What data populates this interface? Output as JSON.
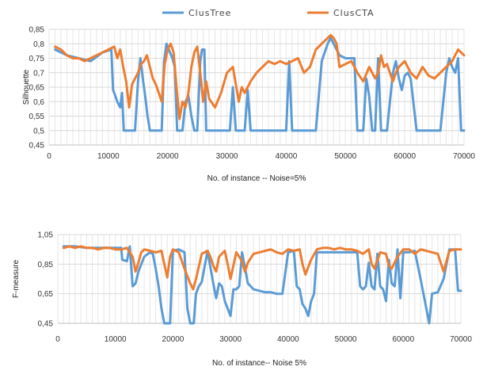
{
  "legend": {
    "position": "top-center",
    "entries": [
      {
        "name": "ClusTree",
        "color": "#5B9BD5"
      },
      {
        "name": "ClusCTA",
        "color": "#ED7D31"
      }
    ]
  },
  "chart_data": [
    {
      "type": "line",
      "title": "",
      "xlabel": "No. of instance -- Noise=5%",
      "ylabel": "Silhouette",
      "xlim": [
        0,
        70000
      ],
      "ylim": [
        0.45,
        0.85
      ],
      "xticks": [
        0,
        10000,
        20000,
        30000,
        40000,
        50000,
        60000,
        70000
      ],
      "yticks": [
        0.45,
        0.5,
        0.55,
        0.6,
        0.65,
        0.7,
        0.75,
        0.8,
        0.85
      ],
      "ytick_labels": [
        "0,45",
        "0,5",
        "0,55",
        "0,6",
        "0,65",
        "0,7",
        "0,75",
        "0,8",
        "0,85"
      ],
      "grid": true,
      "series": [
        {
          "name": "ClusTree",
          "color": "#5B9BD5",
          "x": [
            1000,
            3000,
            5000,
            7000,
            9000,
            10500,
            10800,
            11000,
            11500,
            12000,
            12300,
            12600,
            12900,
            13000,
            14500,
            15000,
            15400,
            15800,
            16200,
            16600,
            17000,
            18500,
            19000,
            19400,
            19800,
            20200,
            20800,
            21200,
            21600,
            22000,
            22500,
            23000,
            23500,
            24000,
            24500,
            25000,
            25500,
            25800,
            26200,
            26500,
            28000,
            30500,
            31000,
            31500,
            32000,
            33000,
            33500,
            34000,
            36000,
            39000,
            40000,
            40500,
            41000,
            42000,
            45000,
            46000,
            47000,
            47500,
            48000,
            49000,
            50000,
            51500,
            52000,
            52500,
            53000,
            53500,
            54000,
            54500,
            55000,
            55500,
            56000,
            56500,
            57000,
            57500,
            58000,
            58500,
            59000,
            59500,
            60000,
            60500,
            61000,
            62000,
            62500,
            65500,
            66000,
            66500,
            67000,
            67500,
            68000,
            68500,
            69000,
            69500,
            70000
          ],
          "values": [
            0.78,
            0.76,
            0.75,
            0.74,
            0.77,
            0.78,
            0.64,
            0.63,
            0.6,
            0.58,
            0.63,
            0.5,
            0.5,
            0.5,
            0.5,
            0.67,
            0.75,
            0.68,
            0.62,
            0.55,
            0.5,
            0.5,
            0.5,
            0.74,
            0.8,
            0.78,
            0.75,
            0.72,
            0.5,
            0.5,
            0.5,
            0.6,
            0.62,
            0.55,
            0.5,
            0.5,
            0.74,
            0.78,
            0.78,
            0.5,
            0.5,
            0.5,
            0.65,
            0.5,
            0.5,
            0.5,
            0.64,
            0.5,
            0.5,
            0.5,
            0.5,
            0.74,
            0.5,
            0.5,
            0.5,
            0.74,
            0.8,
            0.82,
            0.8,
            0.76,
            0.75,
            0.75,
            0.5,
            0.5,
            0.5,
            0.68,
            0.62,
            0.5,
            0.5,
            0.75,
            0.5,
            0.5,
            0.5,
            0.6,
            0.7,
            0.74,
            0.68,
            0.64,
            0.69,
            0.7,
            0.68,
            0.5,
            0.5,
            0.5,
            0.5,
            0.6,
            0.7,
            0.75,
            0.72,
            0.7,
            0.75,
            0.5,
            0.5
          ]
        },
        {
          "name": "ClusCTA",
          "color": "#ED7D31",
          "x": [
            1000,
            2000,
            3000,
            4000,
            5000,
            6000,
            7000,
            8000,
            9000,
            10000,
            11000,
            11500,
            12000,
            12500,
            13000,
            13500,
            14000,
            15000,
            15500,
            16000,
            16500,
            17000,
            17500,
            18000,
            18500,
            19000,
            19500,
            20000,
            20500,
            21000,
            21500,
            22000,
            22500,
            23000,
            23500,
            24000,
            24500,
            25000,
            25500,
            26000,
            26500,
            27000,
            28000,
            29000,
            30000,
            31000,
            32000,
            32500,
            33000,
            34000,
            35000,
            36000,
            37000,
            38000,
            39000,
            40000,
            41000,
            42000,
            43000,
            44000,
            45000,
            46000,
            47000,
            47500,
            48000,
            48500,
            49000,
            50000,
            51000,
            52000,
            53000,
            54000,
            54500,
            55000,
            55500,
            56000,
            56500,
            57000,
            57500,
            58000,
            58500,
            59000,
            60000,
            61000,
            62000,
            63000,
            64000,
            65000,
            66000,
            67000,
            68000,
            69000,
            70000
          ],
          "values": [
            0.79,
            0.78,
            0.76,
            0.75,
            0.75,
            0.74,
            0.75,
            0.76,
            0.77,
            0.78,
            0.79,
            0.75,
            0.78,
            0.72,
            0.67,
            0.58,
            0.66,
            0.7,
            0.73,
            0.74,
            0.76,
            0.72,
            0.68,
            0.66,
            0.63,
            0.6,
            0.73,
            0.78,
            0.8,
            0.77,
            0.65,
            0.54,
            0.6,
            0.58,
            0.63,
            0.72,
            0.77,
            0.79,
            0.7,
            0.6,
            0.67,
            0.61,
            0.58,
            0.63,
            0.7,
            0.72,
            0.6,
            0.65,
            0.63,
            0.67,
            0.7,
            0.72,
            0.74,
            0.73,
            0.74,
            0.73,
            0.74,
            0.75,
            0.7,
            0.72,
            0.78,
            0.8,
            0.82,
            0.83,
            0.82,
            0.8,
            0.72,
            0.73,
            0.74,
            0.7,
            0.67,
            0.72,
            0.7,
            0.68,
            0.7,
            0.76,
            0.72,
            0.73,
            0.7,
            0.67,
            0.7,
            0.72,
            0.74,
            0.7,
            0.68,
            0.72,
            0.69,
            0.68,
            0.7,
            0.72,
            0.74,
            0.78,
            0.76
          ]
        }
      ]
    },
    {
      "type": "line",
      "title": "",
      "xlabel": "No. of instance-- Noise 5%",
      "ylabel": "F-measure",
      "xlim": [
        0,
        70000
      ],
      "ylim": [
        0.45,
        1.05
      ],
      "xticks": [
        0,
        10000,
        20000,
        30000,
        40000,
        50000,
        60000,
        70000
      ],
      "yticks": [
        0.45,
        0.65,
        0.85,
        1.05
      ],
      "ytick_labels": [
        "0,45",
        "0,65",
        "0,85",
        "1,05"
      ],
      "grid": true,
      "series": [
        {
          "name": "ClusTree",
          "color": "#5B9BD5",
          "x": [
            1000,
            3000,
            5000,
            7000,
            9000,
            11000,
            11200,
            12000,
            12500,
            13000,
            13500,
            14000,
            15000,
            16000,
            16500,
            17000,
            17500,
            18000,
            18500,
            19000,
            19500,
            20000,
            21000,
            22000,
            22500,
            23000,
            23300,
            23600,
            24000,
            24500,
            25000,
            26000,
            27000,
            27500,
            28000,
            28500,
            29000,
            29500,
            30000,
            30500,
            31000,
            31500,
            32000,
            33000,
            33500,
            34000,
            35000,
            36000,
            37000,
            38000,
            39000,
            40000,
            41000,
            41500,
            42000,
            42500,
            43000,
            43500,
            44000,
            44500,
            45000,
            46000,
            47000,
            48000,
            49000,
            50000,
            51000,
            52000,
            52500,
            53000,
            53500,
            54000,
            54500,
            55000,
            55500,
            56000,
            56500,
            57000,
            57500,
            58000,
            58500,
            59000,
            59500,
            60000,
            61000,
            62000,
            63000,
            64000,
            64500,
            65000,
            66000,
            67000,
            67500,
            68000,
            69000,
            69500,
            70000
          ],
          "values": [
            0.97,
            0.97,
            0.96,
            0.96,
            0.96,
            0.96,
            0.88,
            0.87,
            0.97,
            0.7,
            0.72,
            0.8,
            0.9,
            0.93,
            0.92,
            0.82,
            0.7,
            0.55,
            0.45,
            0.45,
            0.45,
            0.94,
            0.95,
            0.93,
            0.55,
            0.45,
            0.45,
            0.45,
            0.65,
            0.7,
            0.73,
            0.94,
            0.72,
            0.62,
            0.72,
            0.7,
            0.6,
            0.55,
            0.5,
            0.68,
            0.68,
            0.7,
            0.93,
            0.72,
            0.7,
            0.68,
            0.67,
            0.66,
            0.66,
            0.65,
            0.65,
            0.93,
            0.94,
            0.7,
            0.68,
            0.58,
            0.55,
            0.5,
            0.6,
            0.65,
            0.93,
            0.93,
            0.93,
            0.93,
            0.93,
            0.93,
            0.93,
            0.93,
            0.7,
            0.68,
            0.7,
            0.86,
            0.7,
            0.68,
            0.92,
            0.7,
            0.68,
            0.6,
            0.88,
            0.72,
            0.7,
            0.95,
            0.62,
            0.93,
            0.93,
            0.94,
            0.75,
            0.55,
            0.45,
            0.65,
            0.66,
            0.75,
            0.85,
            0.95,
            0.95,
            0.67,
            0.67
          ]
        },
        {
          "name": "ClusCTA",
          "color": "#ED7D31",
          "x": [
            1000,
            2000,
            3000,
            4000,
            5000,
            6000,
            7000,
            8000,
            9000,
            10000,
            11000,
            12000,
            13000,
            13500,
            14000,
            14500,
            15000,
            16000,
            17000,
            18000,
            18500,
            19000,
            19500,
            20000,
            20500,
            21000,
            22000,
            23000,
            23500,
            24000,
            25000,
            26000,
            26500,
            27000,
            27500,
            28000,
            29000,
            29500,
            30000,
            31000,
            32000,
            32500,
            33000,
            34000,
            35000,
            36000,
            37000,
            38000,
            39000,
            40000,
            41000,
            42000,
            42500,
            43000,
            44000,
            45000,
            46000,
            47000,
            48000,
            49000,
            50000,
            51000,
            52000,
            53000,
            54000,
            54500,
            55000,
            56000,
            57000,
            57500,
            58000,
            59000,
            60000,
            61000,
            62000,
            63000,
            64000,
            65000,
            66000,
            67000,
            68000,
            69000,
            70000
          ],
          "values": [
            0.96,
            0.97,
            0.96,
            0.97,
            0.96,
            0.96,
            0.95,
            0.96,
            0.96,
            0.95,
            0.95,
            0.96,
            0.9,
            0.8,
            0.86,
            0.93,
            0.95,
            0.94,
            0.93,
            0.94,
            0.85,
            0.76,
            0.9,
            0.95,
            0.94,
            0.93,
            0.82,
            0.72,
            0.68,
            0.75,
            0.92,
            0.94,
            0.9,
            0.84,
            0.8,
            0.9,
            0.94,
            0.85,
            0.75,
            0.93,
            0.87,
            0.8,
            0.86,
            0.92,
            0.93,
            0.94,
            0.95,
            0.93,
            0.92,
            0.95,
            0.94,
            0.95,
            0.85,
            0.78,
            0.88,
            0.95,
            0.96,
            0.96,
            0.95,
            0.96,
            0.95,
            0.95,
            0.94,
            0.92,
            0.95,
            0.85,
            0.82,
            0.93,
            0.92,
            0.84,
            0.82,
            0.9,
            0.95,
            0.95,
            0.92,
            0.95,
            0.94,
            0.93,
            0.92,
            0.8,
            0.94,
            0.95,
            0.95
          ]
        }
      ]
    }
  ]
}
